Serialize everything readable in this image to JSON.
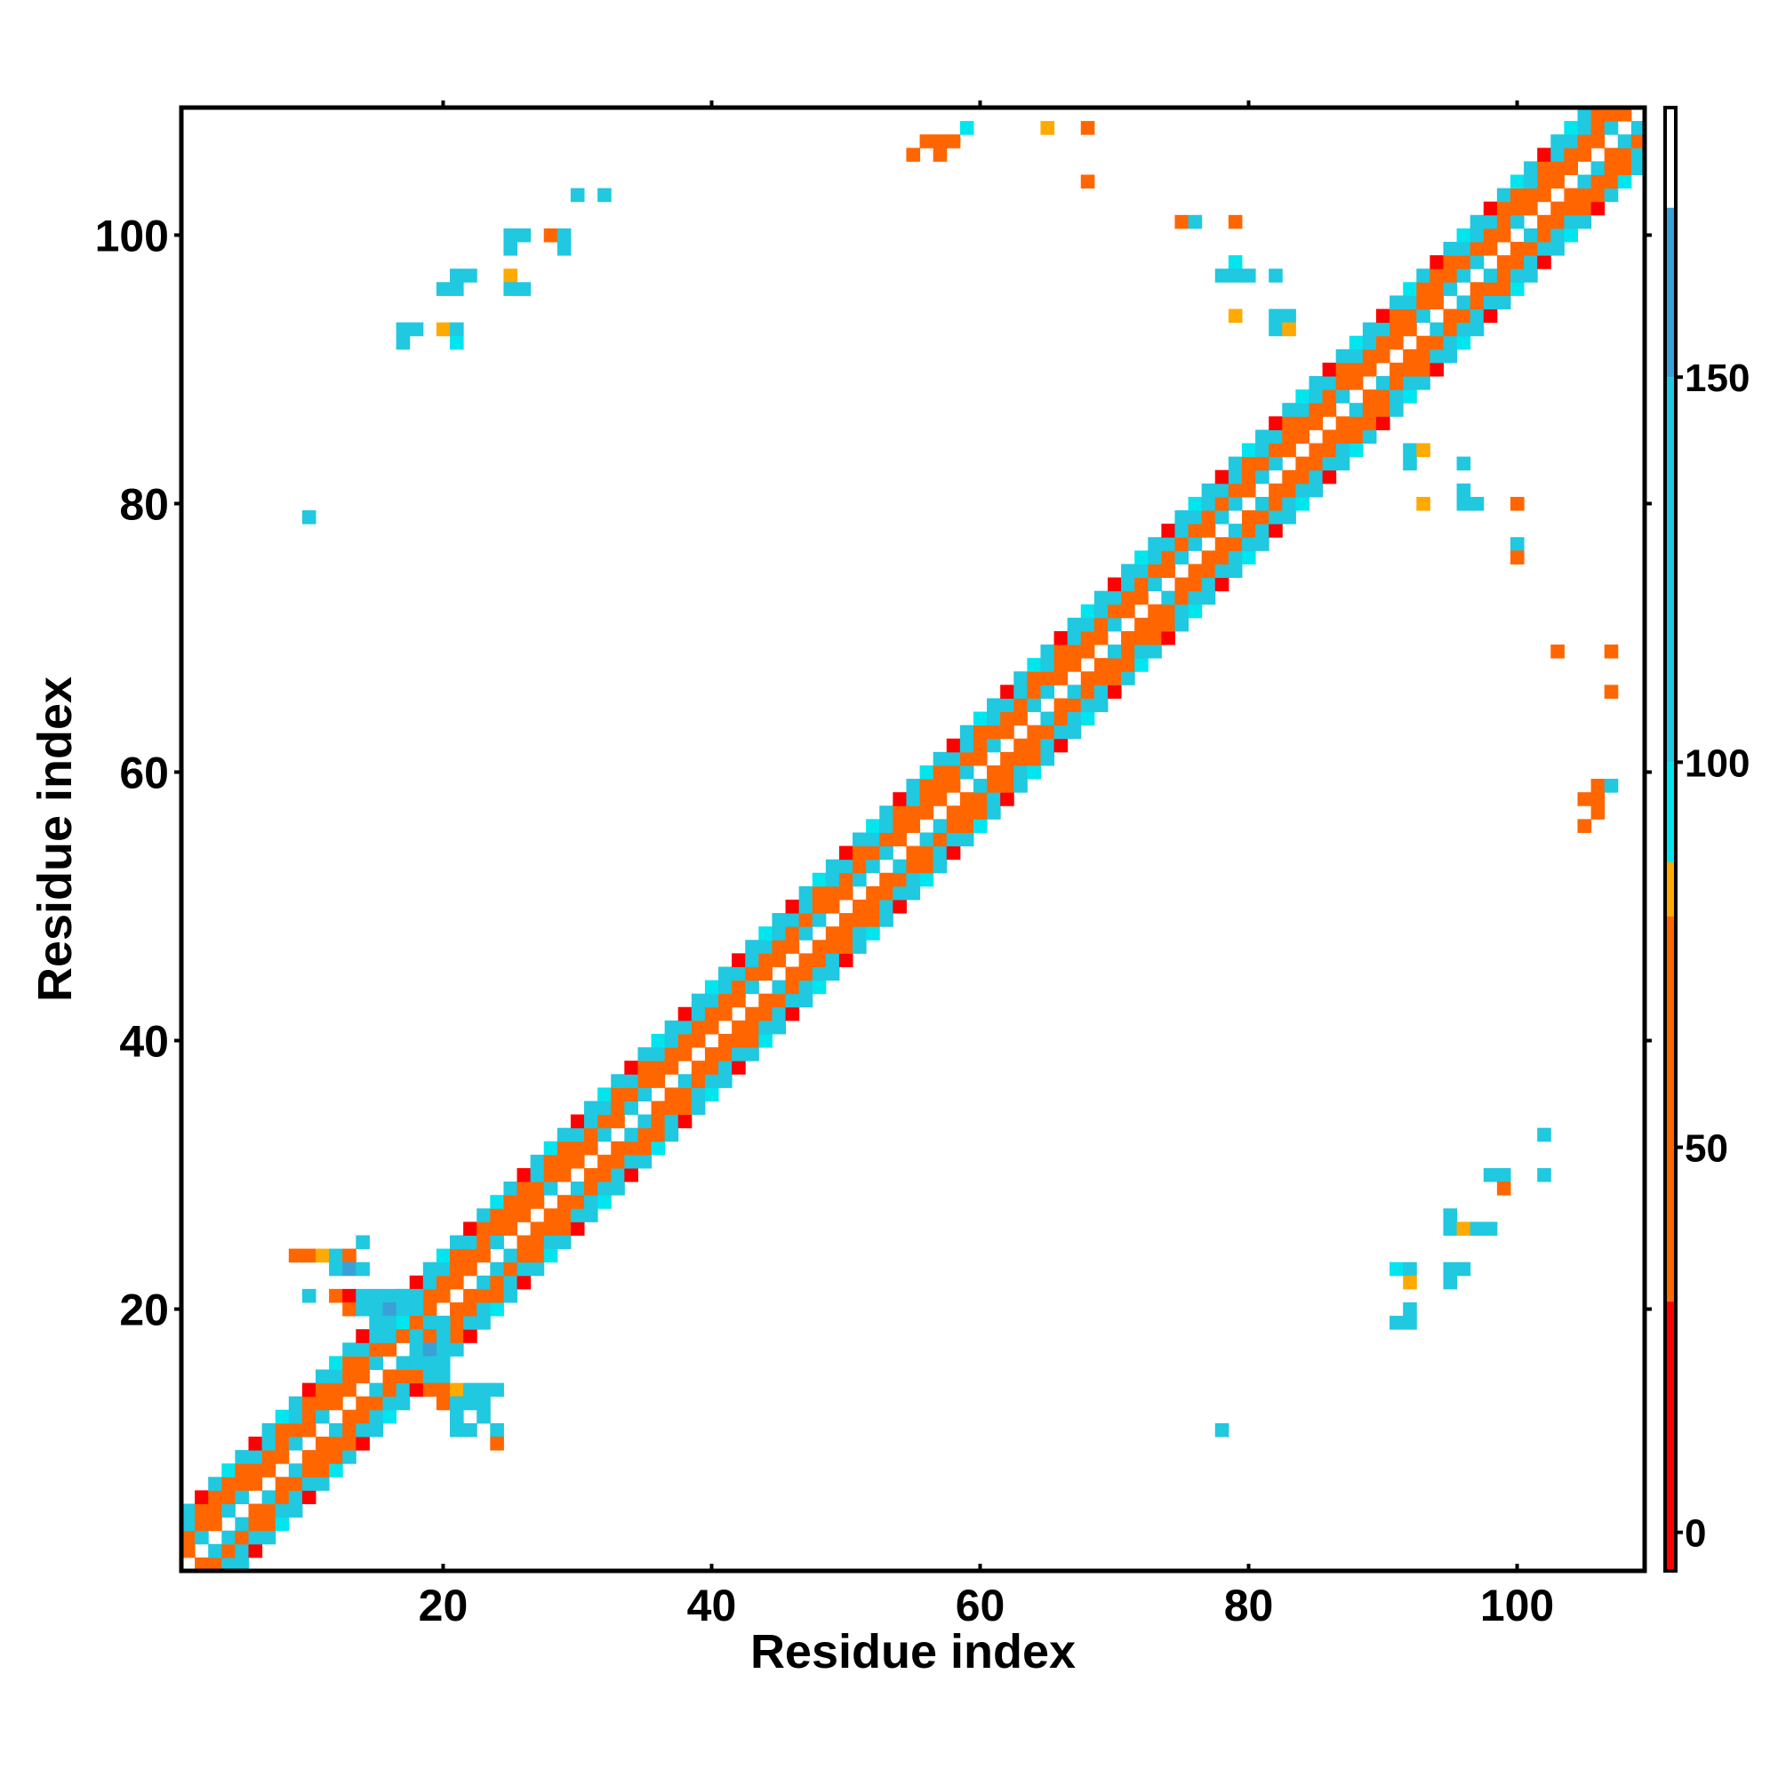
{
  "chart_data": {
    "type": "heatmap",
    "title": "",
    "xlabel": "Residue index",
    "ylabel": "Residue index",
    "x_range": [
      1,
      109
    ],
    "y_range": [
      1,
      109
    ],
    "x_ticks": [
      20,
      40,
      60,
      80,
      100
    ],
    "y_ticks": [
      20,
      40,
      60,
      80,
      100
    ],
    "colorbar": {
      "range": [
        -5,
        185
      ],
      "ticks": [
        0,
        50,
        100,
        150
      ],
      "bands": [
        {
          "from": -5,
          "to": 30,
          "color": "#ff0000"
        },
        {
          "from": 30,
          "to": 80,
          "color": "#ff6600"
        },
        {
          "from": 80,
          "to": 87,
          "color": "#ffaa00"
        },
        {
          "from": 87,
          "to": 100,
          "color": "#00e5ee"
        },
        {
          "from": 100,
          "to": 150,
          "color": "#20c8e0"
        },
        {
          "from": 150,
          "to": 172,
          "color": "#3aa0d8"
        },
        {
          "from": 172,
          "to": 185,
          "color": "#ffffff"
        }
      ]
    },
    "diagonal_band": {
      "description_values": "off-diagonal contacts within |i-j|<=4 plotted near the diagonal",
      "x_start": 1,
      "x_end": 109
    },
    "cells": [
      [
        9,
        24,
        40
      ],
      [
        10,
        24,
        40
      ],
      [
        11,
        24,
        80
      ],
      [
        12,
        24,
        110
      ],
      [
        13,
        24,
        40
      ],
      [
        14,
        25,
        100
      ],
      [
        12,
        23,
        130
      ],
      [
        13,
        23,
        150
      ],
      [
        14,
        23,
        110
      ],
      [
        10,
        21,
        110
      ],
      [
        12,
        21,
        40
      ],
      [
        13,
        21,
        20
      ],
      [
        14,
        21,
        120
      ],
      [
        15,
        21,
        110
      ],
      [
        16,
        21,
        130
      ],
      [
        17,
        21,
        140
      ],
      [
        18,
        21,
        120
      ],
      [
        13,
        20,
        40
      ],
      [
        14,
        20,
        110
      ],
      [
        15,
        20,
        130
      ],
      [
        16,
        20,
        150
      ],
      [
        17,
        20,
        110
      ],
      [
        18,
        20,
        110
      ],
      [
        15,
        19,
        110
      ],
      [
        16,
        19,
        110
      ],
      [
        17,
        19,
        95
      ],
      [
        18,
        19,
        40
      ],
      [
        19,
        19,
        110
      ],
      [
        20,
        19,
        110
      ],
      [
        16,
        18,
        110
      ],
      [
        17,
        18,
        40
      ],
      [
        18,
        18,
        120
      ],
      [
        19,
        18,
        60
      ],
      [
        20,
        18,
        110
      ],
      [
        18,
        17,
        110
      ],
      [
        19,
        17,
        150
      ],
      [
        20,
        17,
        110
      ],
      [
        18,
        16,
        110
      ],
      [
        19,
        16,
        110
      ],
      [
        20,
        16,
        110
      ],
      [
        20,
        15,
        110
      ],
      [
        19,
        14,
        40
      ],
      [
        20,
        14,
        40
      ],
      [
        21,
        14,
        80
      ],
      [
        22,
        14,
        110
      ],
      [
        23,
        14,
        110
      ],
      [
        24,
        14,
        110
      ],
      [
        20,
        13,
        40
      ],
      [
        21,
        13,
        110
      ],
      [
        22,
        13,
        110
      ],
      [
        23,
        13,
        140
      ],
      [
        21,
        12,
        110
      ],
      [
        23,
        12,
        110
      ],
      [
        24,
        11,
        110
      ],
      [
        24,
        10,
        40
      ],
      [
        21,
        11,
        110
      ],
      [
        22,
        11,
        110
      ],
      [
        30,
        103,
        110
      ],
      [
        32,
        103,
        110
      ],
      [
        28,
        100,
        40
      ],
      [
        29,
        100,
        110
      ],
      [
        25,
        100,
        110
      ],
      [
        26,
        100,
        110
      ],
      [
        25,
        99,
        110
      ],
      [
        29,
        99,
        110
      ],
      [
        21,
        97,
        110
      ],
      [
        22,
        97,
        110
      ],
      [
        25,
        97,
        80
      ],
      [
        20,
        96,
        110
      ],
      [
        21,
        96,
        110
      ],
      [
        25,
        96,
        110
      ],
      [
        26,
        96,
        110
      ],
      [
        17,
        93,
        110
      ],
      [
        18,
        93,
        110
      ],
      [
        20,
        93,
        80
      ],
      [
        21,
        93,
        110
      ],
      [
        17,
        92,
        110
      ],
      [
        21,
        92,
        95
      ],
      [
        10,
        79,
        110
      ],
      [
        56,
        107,
        40
      ],
      [
        57,
        107,
        40
      ],
      [
        58,
        107,
        40
      ],
      [
        59,
        108,
        95
      ],
      [
        55,
        106,
        40
      ],
      [
        57,
        106,
        40
      ],
      [
        65,
        108,
        80
      ],
      [
        68,
        108,
        40
      ],
      [
        68,
        104,
        40
      ],
      [
        75,
        101,
        40
      ],
      [
        76,
        101,
        110
      ],
      [
        79,
        101,
        40
      ],
      [
        79,
        98,
        95
      ],
      [
        78,
        97,
        110
      ],
      [
        79,
        97,
        110
      ],
      [
        80,
        97,
        110
      ],
      [
        82,
        97,
        110
      ],
      [
        79,
        94,
        80
      ],
      [
        82,
        94,
        110
      ],
      [
        83,
        94,
        110
      ],
      [
        82,
        93,
        110
      ],
      [
        83,
        93,
        80
      ],
      [
        92,
        84,
        110
      ],
      [
        93,
        84,
        80
      ],
      [
        92,
        83,
        110
      ],
      [
        96,
        83,
        110
      ],
      [
        93,
        80,
        80
      ],
      [
        96,
        81,
        110
      ],
      [
        96,
        80,
        110
      ],
      [
        97,
        80,
        110
      ],
      [
        100,
        80,
        40
      ],
      [
        100,
        77,
        110
      ],
      [
        100,
        76,
        40
      ],
      [
        103,
        69,
        40
      ],
      [
        107,
        69,
        40
      ],
      [
        107,
        66,
        40
      ],
      [
        106,
        59,
        40
      ],
      [
        107,
        59,
        110
      ],
      [
        105,
        58,
        40
      ],
      [
        106,
        58,
        40
      ],
      [
        106,
        57,
        40
      ],
      [
        105,
        56,
        40
      ],
      [
        102,
        33,
        110
      ],
      [
        102,
        30,
        110
      ],
      [
        98,
        30,
        110
      ],
      [
        99,
        30,
        110
      ],
      [
        99,
        29,
        40
      ],
      [
        95,
        27,
        110
      ],
      [
        95,
        26,
        110
      ],
      [
        96,
        26,
        80
      ],
      [
        97,
        26,
        110
      ],
      [
        98,
        26,
        110
      ],
      [
        91,
        23,
        95
      ],
      [
        92,
        23,
        110
      ],
      [
        95,
        23,
        110
      ],
      [
        96,
        23,
        110
      ],
      [
        92,
        22,
        80
      ],
      [
        95,
        22,
        110
      ],
      [
        91,
        19,
        110
      ],
      [
        92,
        19,
        110
      ],
      [
        92,
        20,
        110
      ],
      [
        78,
        11,
        110
      ]
    ]
  }
}
